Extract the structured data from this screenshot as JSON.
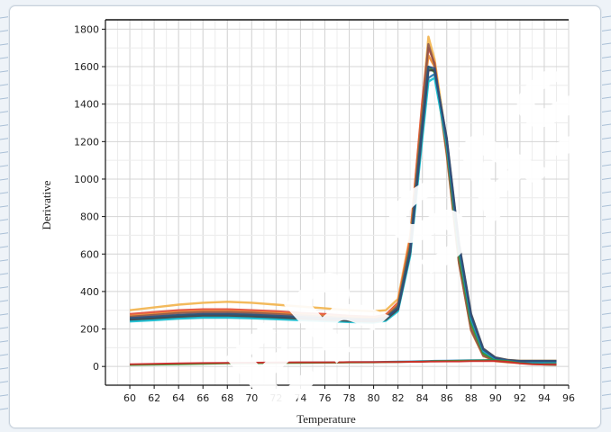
{
  "chart_data": {
    "type": "line",
    "title": "",
    "xlabel": "Temperature",
    "ylabel": "Derivative",
    "xlim": [
      58,
      96
    ],
    "ylim": [
      -100,
      1850
    ],
    "xticks": [
      60,
      62,
      64,
      66,
      68,
      70,
      72,
      74,
      76,
      78,
      80,
      82,
      84,
      86,
      88,
      90,
      92,
      94,
      96
    ],
    "xtick_labels": [
      "60",
      "62",
      "64",
      "66",
      "68",
      "70",
      "72",
      "74",
      "76",
      "78",
      "80",
      "82",
      "84",
      "86",
      "88",
      "90",
      "92",
      "94",
      "96"
    ],
    "yticks": [
      0,
      200,
      400,
      600,
      800,
      1000,
      1200,
      1400,
      1600,
      1800
    ],
    "ytick_labels": [
      "0",
      "200",
      "400",
      "600",
      "800",
      "1000",
      "1200",
      "1400",
      "1600",
      "1800"
    ],
    "grid": true,
    "legend": "none",
    "x": [
      60,
      62,
      64,
      66,
      68,
      70,
      72,
      74,
      76,
      78,
      80,
      81,
      82,
      83,
      84,
      84.5,
      85,
      86,
      87,
      88,
      89,
      90,
      91,
      92,
      93,
      94,
      95
    ],
    "series": [
      {
        "color": "#f2b24a",
        "values": [
          300,
          315,
          330,
          340,
          345,
          340,
          330,
          320,
          310,
          300,
          295,
          300,
          360,
          700,
          1400,
          1760,
          1640,
          1200,
          600,
          220,
          70,
          40,
          35,
          30,
          30,
          30,
          30
        ]
      },
      {
        "color": "#e24a33",
        "values": [
          280,
          290,
          300,
          305,
          305,
          300,
          295,
          285,
          280,
          270,
          265,
          275,
          340,
          680,
          1420,
          1700,
          1620,
          1150,
          560,
          200,
          60,
          30,
          25,
          20,
          20,
          20,
          20
        ]
      },
      {
        "color": "#f08a2c",
        "values": [
          270,
          280,
          290,
          295,
          295,
          290,
          285,
          278,
          270,
          262,
          258,
          268,
          330,
          660,
          1380,
          1660,
          1600,
          1130,
          550,
          190,
          55,
          28,
          22,
          18,
          18,
          18,
          18
        ]
      },
      {
        "color": "#8c564b",
        "values": [
          265,
          275,
          285,
          290,
          290,
          286,
          280,
          272,
          265,
          258,
          254,
          264,
          325,
          650,
          1360,
          1720,
          1610,
          1140,
          555,
          195,
          58,
          30,
          24,
          20,
          20,
          20,
          20
        ]
      },
      {
        "color": "#2ca02c",
        "values": [
          255,
          263,
          272,
          278,
          278,
          274,
          268,
          262,
          256,
          250,
          246,
          256,
          315,
          630,
          1300,
          1600,
          1570,
          1180,
          600,
          230,
          70,
          35,
          28,
          22,
          22,
          22,
          22
        ]
      },
      {
        "color": "#1f77b4",
        "values": [
          245,
          252,
          260,
          265,
          265,
          262,
          257,
          252,
          247,
          242,
          238,
          248,
          300,
          600,
          1240,
          1540,
          1560,
          1200,
          630,
          250,
          80,
          40,
          30,
          25,
          25,
          25,
          25
        ]
      },
      {
        "color": "#17becf",
        "values": [
          240,
          247,
          255,
          260,
          260,
          257,
          252,
          247,
          242,
          237,
          234,
          244,
          295,
          590,
          1220,
          1520,
          1540,
          1190,
          640,
          260,
          85,
          42,
          30,
          25,
          25,
          25,
          25
        ]
      },
      {
        "color": "#444444",
        "values": [
          250,
          258,
          266,
          272,
          272,
          268,
          262,
          256,
          250,
          244,
          240,
          250,
          305,
          610,
          1270,
          1580,
          1580,
          1220,
          660,
          280,
          95,
          48,
          35,
          30,
          30,
          30,
          30
        ]
      },
      {
        "color": "#2f4f7f",
        "values": [
          258,
          266,
          274,
          280,
          280,
          276,
          270,
          264,
          258,
          252,
          248,
          258,
          312,
          620,
          1290,
          1600,
          1590,
          1210,
          650,
          270,
          90,
          45,
          32,
          28,
          28,
          28,
          28
        ]
      },
      {
        "color": "#1f77b4",
        "values": [
          10,
          12,
          14,
          16,
          18,
          19,
          20,
          21,
          22,
          23,
          24,
          25,
          26,
          27,
          28,
          29,
          30,
          31,
          32,
          33,
          34,
          35,
          30,
          20,
          15,
          12,
          10
        ]
      },
      {
        "color": "#2ca02c",
        "values": [
          8,
          10,
          12,
          14,
          16,
          17,
          18,
          19,
          20,
          21,
          22,
          23,
          24,
          25,
          26,
          27,
          28,
          29,
          30,
          31,
          32,
          33,
          28,
          18,
          13,
          10,
          8
        ]
      },
      {
        "color": "#d62728",
        "values": [
          12,
          14,
          16,
          18,
          19,
          20,
          21,
          22,
          22,
          23,
          23,
          24,
          24,
          25,
          25,
          26,
          26,
          27,
          27,
          28,
          28,
          29,
          25,
          16,
          12,
          10,
          9
        ]
      }
    ]
  },
  "watermark": "ER SAS"
}
